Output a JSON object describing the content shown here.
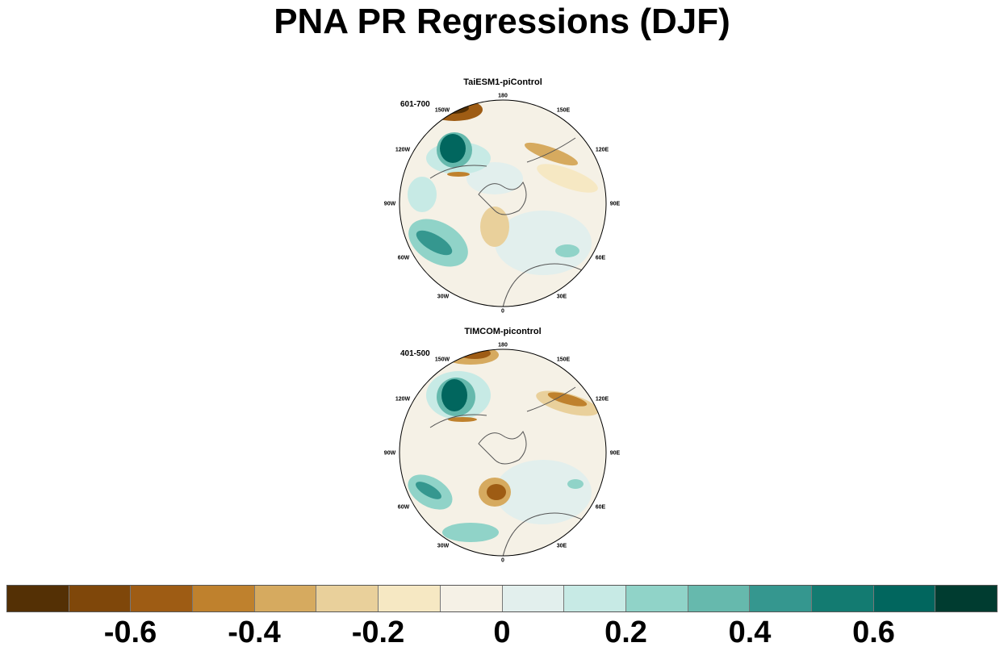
{
  "title": "PNA PR Regressions (DJF)",
  "panels": [
    {
      "name": "TaiESM1-piControl",
      "period": "601-700",
      "lon_labels": [
        "180",
        "150E",
        "120E",
        "90E",
        "60E",
        "30E",
        "0",
        "30W",
        "60W",
        "90W",
        "120W",
        "150W"
      ]
    },
    {
      "name": "TIMCOM-picontrol",
      "period": "401-500",
      "lon_labels": [
        "180",
        "150E",
        "120E",
        "90E",
        "60E",
        "30E",
        "0",
        "30W",
        "60W",
        "90W",
        "120W",
        "150W"
      ]
    }
  ],
  "colorbar": {
    "colors": [
      "#543005",
      "#7f470a",
      "#9e5c14",
      "#bf812d",
      "#d6aa5f",
      "#e9d09b",
      "#f6e8c3",
      "#f5f1e6",
      "#e2efed",
      "#c7eae5",
      "#90d3c8",
      "#66b9ad",
      "#35978f",
      "#137b71",
      "#01665e",
      "#003c30"
    ],
    "labels": [
      "-0.6",
      "-0.4",
      "-0.2",
      "0",
      "0.2",
      "0.4",
      "0.6"
    ],
    "label_values": [
      -0.6,
      -0.4,
      -0.2,
      0,
      0.2,
      0.4,
      0.6
    ]
  }
}
